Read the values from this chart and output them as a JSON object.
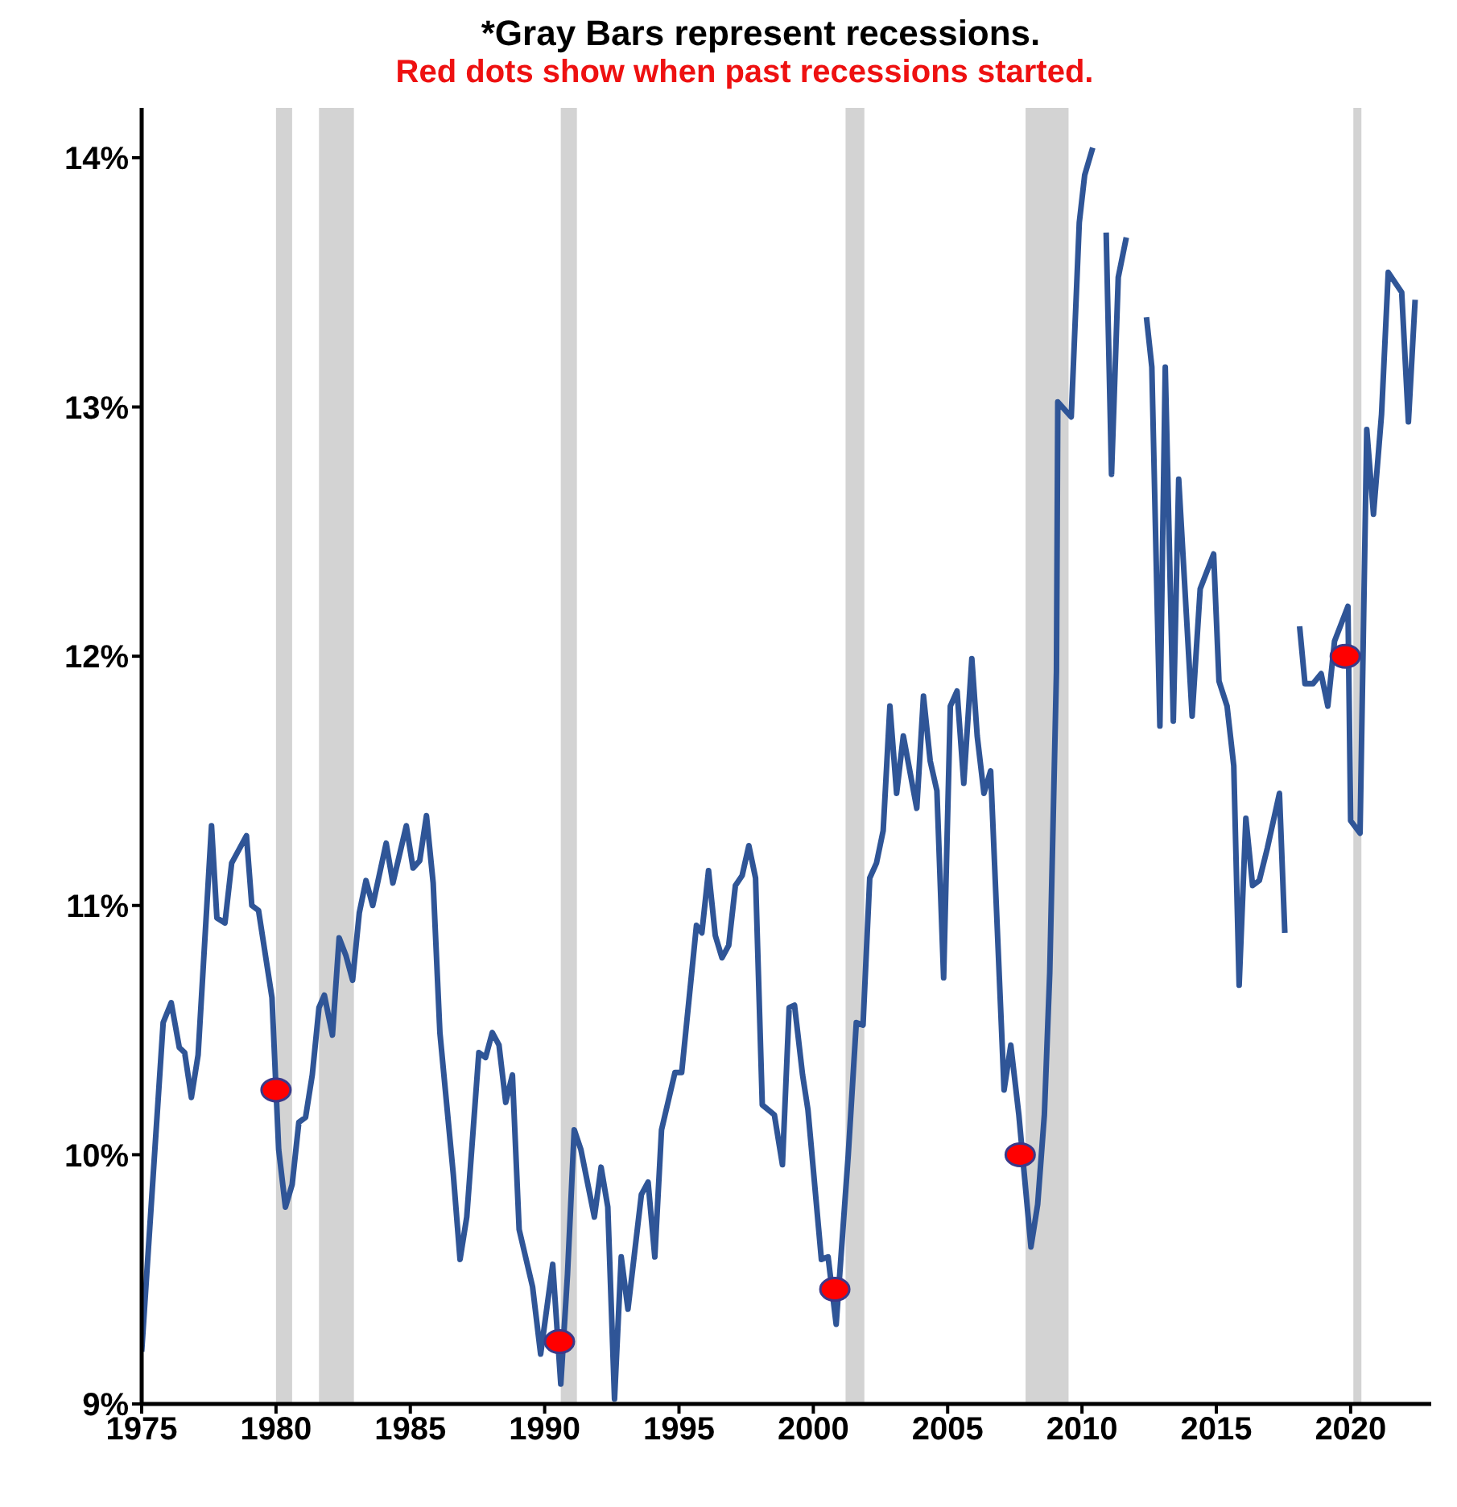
{
  "chart_data": {
    "type": "line",
    "title": "*Gray Bars represent recessions.",
    "subtitle": "Red dots show when past recessions started.",
    "xlim": [
      1975,
      2023
    ],
    "xticks": [
      1975,
      1980,
      1985,
      1990,
      1995,
      2000,
      2005,
      2010,
      2015,
      2020
    ],
    "ylim": [
      9,
      14.2
    ],
    "yticks": [
      {
        "value": 9,
        "label": "9%"
      },
      {
        "value": 10,
        "label": "10%"
      },
      {
        "value": 11,
        "label": "11%"
      },
      {
        "value": 12,
        "label": "12%"
      },
      {
        "value": 13,
        "label": "13%"
      },
      {
        "value": 14,
        "label": "14%"
      }
    ],
    "grid": false,
    "legend": false,
    "marker": "none",
    "line_style": "solid",
    "series": [
      {
        "type": "line",
        "color": "#2f5597",
        "x": [
          1975.0,
          1975.8,
          1976.1,
          1976.4,
          1976.6,
          1976.85,
          1977.1,
          1977.6,
          1977.8,
          1978.1,
          1978.35,
          1978.9,
          1979.1,
          1979.35,
          1979.85,
          1980.1,
          1980.35,
          1980.6,
          1980.85,
          1981.1,
          1981.35,
          1981.6,
          1981.8,
          1982.1,
          1982.35,
          1982.6,
          1982.85,
          1983.1,
          1983.35,
          1983.6,
          1984.1,
          1984.35,
          1984.85,
          1985.1,
          1985.35,
          1985.6,
          1985.85,
          1986.1,
          1986.6,
          1986.85,
          1987.1,
          1987.55,
          1987.8,
          1988.05,
          1988.3,
          1988.55,
          1988.8,
          1989.05,
          1989.55,
          1989.85,
          1990.3,
          1990.6,
          1990.85,
          1991.1,
          1991.35,
          1991.85,
          1992.1,
          1992.35,
          1992.6,
          1992.85,
          1993.1,
          1993.6,
          1993.85,
          1994.1,
          1994.35,
          1994.85,
          1995.1,
          1995.65,
          1995.85,
          1996.1,
          1996.35,
          1996.6,
          1996.85,
          1997.1,
          1997.35,
          1997.6,
          1997.85,
          1998.1,
          1998.55,
          1998.85,
          1999.1,
          1999.3,
          1999.6,
          1999.8,
          2000.3,
          2000.55,
          2000.85,
          2001.3,
          2001.6,
          2001.85,
          2002.1,
          2002.35,
          2002.6,
          2002.85,
          2003.1,
          2003.35,
          2003.85,
          2004.1,
          2004.35,
          2004.6,
          2004.85,
          2005.1,
          2005.35,
          2005.6,
          2005.9,
          2006.1,
          2006.35,
          2006.6,
          2007.1,
          2007.35,
          2007.65,
          2008.1,
          2008.35,
          2008.6,
          2008.8,
          2009.05,
          2009.1,
          2009.6,
          2009.9,
          2010.1,
          2010.4,
          2010.6,
          2010.9,
          2011.1,
          2011.35,
          2011.65,
          2011.9,
          2012.4,
          2012.6,
          2012.9,
          2013.1,
          2013.4,
          2013.6,
          2014.1,
          2014.4,
          2014.9,
          2015.1,
          2015.4,
          2015.65,
          2015.85,
          2016.1,
          2016.35,
          2016.6,
          2016.9,
          2017.35,
          2017.55,
          2017.75,
          2017.9,
          2018.1,
          2018.3,
          2018.6,
          2018.9,
          2019.15,
          2019.4,
          2019.9,
          2020.0,
          2020.35,
          2020.6,
          2020.85,
          2021.15,
          2021.4,
          2021.9,
          2022.15,
          2022.4
        ],
        "values": [
          9.21,
          10.53,
          10.61,
          10.43,
          10.41,
          10.23,
          10.4,
          11.32,
          10.95,
          10.93,
          11.17,
          11.28,
          11.0,
          10.98,
          10.63,
          10.02,
          9.79,
          9.88,
          10.13,
          10.15,
          10.32,
          10.59,
          10.64,
          10.48,
          10.87,
          10.8,
          10.7,
          10.97,
          11.1,
          11.0,
          11.25,
          11.09,
          11.32,
          11.15,
          11.18,
          11.36,
          11.09,
          10.49,
          9.92,
          9.58,
          9.75,
          10.41,
          10.39,
          10.49,
          10.44,
          10.21,
          10.32,
          9.7,
          9.47,
          9.2,
          9.56,
          9.08,
          9.52,
          10.1,
          10.02,
          9.75,
          9.95,
          9.79,
          9.02,
          9.59,
          9.38,
          9.84,
          9.89,
          9.59,
          10.1,
          10.33,
          10.33,
          10.92,
          10.89,
          11.14,
          10.88,
          10.79,
          10.84,
          11.08,
          11.12,
          11.24,
          11.11,
          10.2,
          10.16,
          9.96,
          10.59,
          10.6,
          10.32,
          10.18,
          9.58,
          9.59,
          9.32,
          10.0,
          10.53,
          10.52,
          11.11,
          11.17,
          11.3,
          11.8,
          11.45,
          11.68,
          11.39,
          11.84,
          11.58,
          11.46,
          10.71,
          11.8,
          11.86,
          11.49,
          11.99,
          11.68,
          11.45,
          11.54,
          10.26,
          10.44,
          10.16,
          9.63,
          9.8,
          10.16,
          10.73,
          11.94,
          13.02,
          12.96,
          13.74,
          13.93,
          14.04,
          null,
          13.7,
          12.73,
          13.52,
          13.68,
          null,
          13.36,
          13.16,
          11.72,
          13.16,
          11.74,
          12.71,
          11.76,
          12.27,
          12.41,
          11.9,
          11.8,
          11.56,
          10.68,
          11.35,
          11.08,
          11.1,
          11.23,
          11.45,
          10.89,
          null,
          null,
          12.12,
          11.89,
          11.89,
          11.93,
          11.8,
          12.06,
          12.2,
          11.34,
          11.29,
          12.91,
          12.57,
          12.97,
          13.54,
          13.46,
          12.94,
          13.43
        ]
      },
      {
        "type": "scatter",
        "color": "#ff0000",
        "marker": "circle",
        "x": [
          1980.0,
          1990.55,
          2000.8,
          2007.7,
          2019.8
        ],
        "values": [
          10.26,
          9.25,
          9.46,
          10.0,
          12.0
        ]
      }
    ],
    "bands": [
      {
        "axis": "x",
        "from": 1980.0,
        "to": 1980.6,
        "color": "#c8c8c8"
      },
      {
        "axis": "x",
        "from": 1981.6,
        "to": 1982.9,
        "color": "#c8c8c8"
      },
      {
        "axis": "x",
        "from": 1990.6,
        "to": 1991.2,
        "color": "#c8c8c8"
      },
      {
        "axis": "x",
        "from": 2001.2,
        "to": 2001.9,
        "color": "#c8c8c8"
      },
      {
        "axis": "x",
        "from": 2007.9,
        "to": 2009.5,
        "color": "#c8c8c8"
      },
      {
        "axis": "x",
        "from": 2020.1,
        "to": 2020.4,
        "color": "#c8c8c8"
      }
    ]
  }
}
